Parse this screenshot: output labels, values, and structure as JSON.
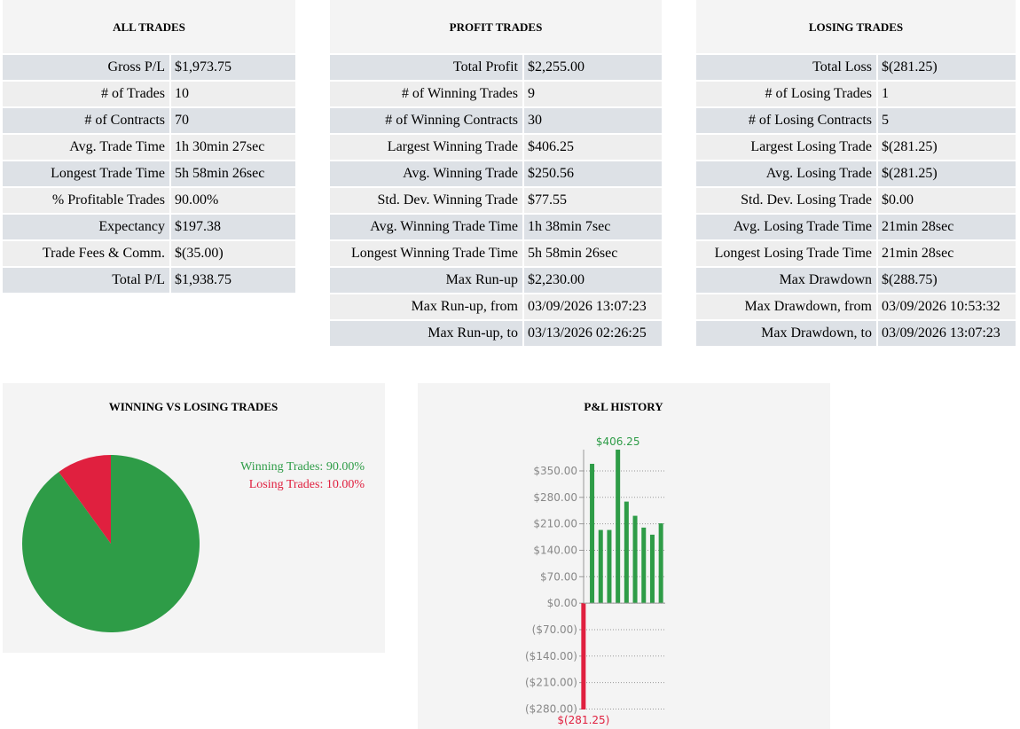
{
  "tables": [
    {
      "title": "ALL TRADES",
      "rows": [
        [
          "Gross P/L",
          "$1,973.75"
        ],
        [
          "# of Trades",
          "10"
        ],
        [
          "# of Contracts",
          "70"
        ],
        [
          "Avg. Trade Time",
          "1h 30min 27sec"
        ],
        [
          "Longest Trade Time",
          "5h 58min 26sec"
        ],
        [
          "% Profitable Trades",
          "90.00%"
        ],
        [
          "Expectancy",
          "$197.38"
        ],
        [
          "Trade Fees & Comm.",
          "$(35.00)"
        ],
        [
          "Total P/L",
          "$1,938.75"
        ]
      ]
    },
    {
      "title": "PROFIT TRADES",
      "rows": [
        [
          "Total Profit",
          "$2,255.00"
        ],
        [
          "# of Winning Trades",
          "9"
        ],
        [
          "# of Winning Contracts",
          "30"
        ],
        [
          "Largest Winning Trade",
          "$406.25"
        ],
        [
          "Avg. Winning Trade",
          "$250.56"
        ],
        [
          "Std. Dev. Winning Trade",
          "$77.55"
        ],
        [
          "Avg. Winning Trade Time",
          "1h 38min 7sec"
        ],
        [
          "Longest Winning Trade Time",
          "5h 58min 26sec"
        ],
        [
          "Max Run-up",
          "$2,230.00"
        ],
        [
          "Max Run-up, from",
          "03/09/2026 13:07:23"
        ],
        [
          "Max Run-up, to",
          "03/13/2026 02:26:25"
        ]
      ]
    },
    {
      "title": "LOSING TRADES",
      "rows": [
        [
          "Total Loss",
          "$(281.25)"
        ],
        [
          "# of Losing Trades",
          "1"
        ],
        [
          "# of Losing Contracts",
          "5"
        ],
        [
          "Largest Losing Trade",
          "$(281.25)"
        ],
        [
          "Avg. Losing Trade",
          "$(281.25)"
        ],
        [
          "Std. Dev. Losing Trade",
          "$0.00"
        ],
        [
          "Avg. Losing Trade Time",
          "21min 28sec"
        ],
        [
          "Longest Losing Trade Time",
          "21min 28sec"
        ],
        [
          "Max Drawdown",
          "$(288.75)"
        ],
        [
          "Max Drawdown, from",
          "03/09/2026 10:53:32"
        ],
        [
          "Max Drawdown, to",
          "03/09/2026 13:07:23"
        ]
      ]
    }
  ],
  "chart_data": [
    {
      "type": "pie",
      "title": "WINNING VS LOSING TRADES",
      "categories": [
        "Winning Trades: 90.00%",
        "Losing Trades: 10.00%"
      ],
      "values": [
        90,
        10
      ],
      "colors": [
        "#2e9c47",
        "#e0203f"
      ]
    },
    {
      "type": "bar",
      "title": "P&L HISTORY",
      "categories": [
        null,
        null,
        null,
        null,
        null,
        null,
        null,
        null,
        null,
        null
      ],
      "values": [
        -281.25,
        368.75,
        193.75,
        193.75,
        406.25,
        268.75,
        231.25,
        200,
        181.25,
        211.25
      ],
      "value_labels": [
        "$(281.25)",
        null,
        null,
        null,
        "$406.25",
        null,
        null,
        null,
        null,
        null
      ],
      "positive_color": "#2e9c47",
      "negative_color": "#e0203f",
      "ylim": [
        -281.25,
        406.25
      ],
      "yticks": [
        {
          "value": -280,
          "label": "($280.00)"
        },
        {
          "value": -210,
          "label": "($210.00)"
        },
        {
          "value": -140,
          "label": "($140.00)"
        },
        {
          "value": -70,
          "label": "($70.00)"
        },
        {
          "value": 0,
          "label": "$0.00"
        },
        {
          "value": 70,
          "label": "$70.00"
        },
        {
          "value": 140,
          "label": "$140.00"
        },
        {
          "value": 210,
          "label": "$210.00"
        },
        {
          "value": 280,
          "label": "$280.00"
        },
        {
          "value": 350,
          "label": "$350.00"
        }
      ],
      "grid": true
    }
  ]
}
